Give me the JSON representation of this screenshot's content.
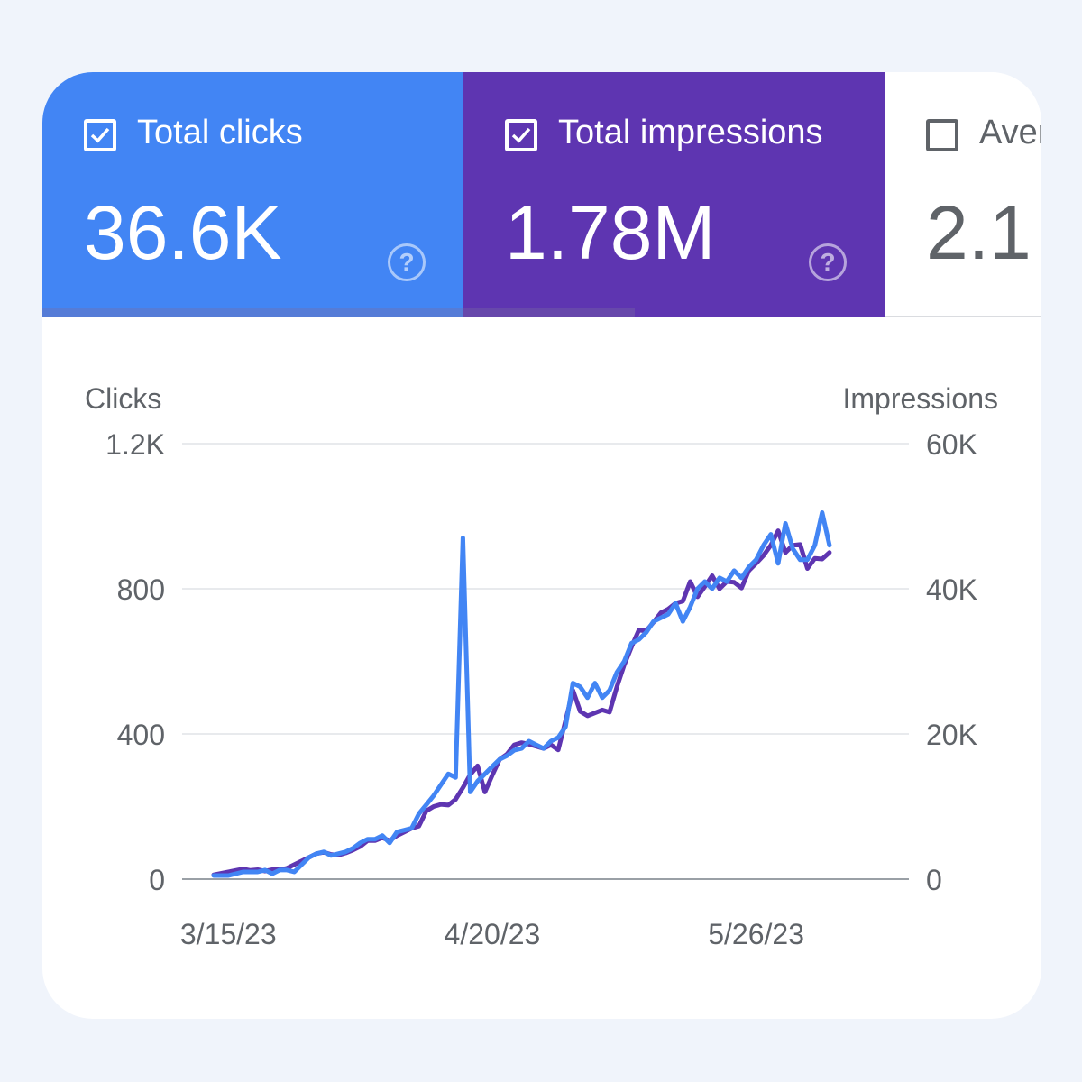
{
  "tabs": {
    "clicks": {
      "label": "Total clicks",
      "value": "36.6K",
      "checked": true,
      "color": "#4285f4",
      "help": "?"
    },
    "impressions": {
      "label": "Total impressions",
      "value": "1.78M",
      "checked": true,
      "color": "#5e35b1",
      "help": "?"
    },
    "avg": {
      "label": "Aver",
      "value": "2.1",
      "checked": false
    }
  },
  "chart_data": {
    "type": "line",
    "left_axis_title": "Clicks",
    "right_axis_title": "Impressions",
    "left_ticks": [
      "1.2K",
      "800",
      "400",
      "0"
    ],
    "right_ticks": [
      "60K",
      "40K",
      "20K",
      "0"
    ],
    "x_ticks": [
      "3/15/23",
      "4/20/23",
      "5/26/23"
    ],
    "left_ylim": [
      0,
      1200
    ],
    "right_ylim": [
      0,
      60000
    ],
    "grid": true,
    "series": [
      {
        "name": "Total impressions",
        "axis": "right",
        "color": "#5e35b1",
        "x_start": "3/13/23",
        "values": [
          600,
          800,
          1000,
          1200,
          1400,
          1200,
          1300,
          1100,
          1300,
          1300,
          1500,
          2000,
          2500,
          3000,
          3500,
          3700,
          3400,
          3300,
          3600,
          4000,
          4500,
          5300,
          5300,
          5700,
          5300,
          6000,
          6500,
          7000,
          7300,
          9400,
          10000,
          10300,
          10200,
          11000,
          12600,
          14400,
          15600,
          12000,
          14300,
          16500,
          17200,
          18500,
          18800,
          18600,
          18300,
          18000,
          18500,
          17800,
          21800,
          26000,
          23100,
          22500,
          22900,
          23300,
          23000,
          26500,
          29500,
          32000,
          34300,
          34200,
          35400,
          36700,
          37200,
          38000,
          38300,
          41000,
          38900,
          40300,
          41800,
          40000,
          41000,
          40900,
          40100,
          42500,
          43500,
          44600,
          46000,
          48000,
          45000,
          46000,
          46100,
          42800,
          44200,
          44100,
          45000
        ]
      },
      {
        "name": "Total clicks",
        "axis": "left",
        "color": "#4285f4",
        "x_start": "3/13/23",
        "values": [
          10,
          10,
          10,
          15,
          20,
          20,
          20,
          25,
          15,
          25,
          25,
          20,
          40,
          60,
          70,
          75,
          65,
          70,
          75,
          85,
          100,
          110,
          110,
          120,
          100,
          130,
          135,
          140,
          180,
          205,
          230,
          260,
          290,
          280,
          940,
          240,
          270,
          290,
          310,
          330,
          340,
          355,
          360,
          380,
          370,
          360,
          380,
          390,
          420,
          540,
          530,
          500,
          540,
          500,
          520,
          570,
          600,
          650,
          660,
          680,
          710,
          720,
          730,
          760,
          710,
          750,
          800,
          820,
          800,
          830,
          820,
          850,
          830,
          860,
          880,
          920,
          950,
          870,
          980,
          910,
          880,
          880,
          920,
          1010,
          920
        ]
      }
    ]
  }
}
